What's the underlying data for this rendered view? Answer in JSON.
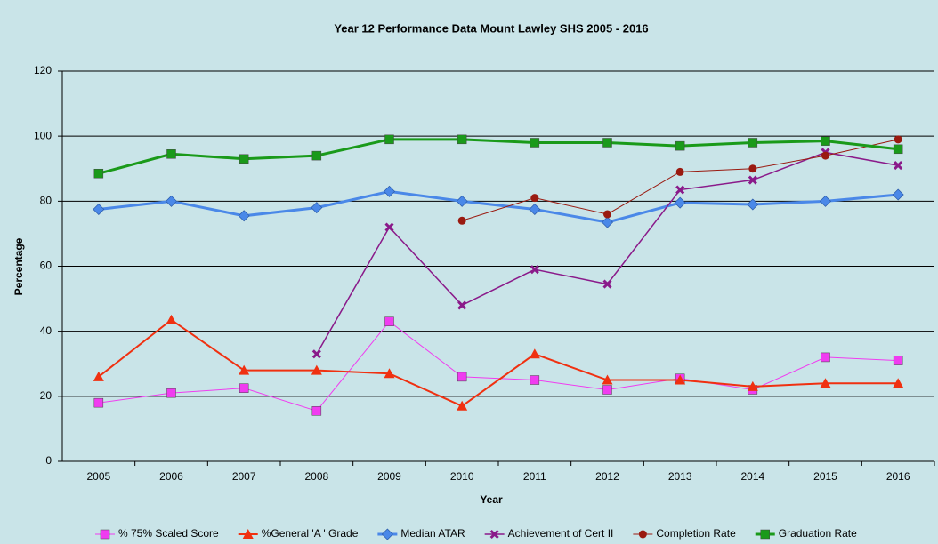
{
  "chart_data": {
    "type": "line",
    "title": "Year 12 Performance Data Mount Lawley SHS 2005 - 2016",
    "x_label": "Year",
    "y_label": "Percentage",
    "categories": [
      "2005",
      "2006",
      "2007",
      "2008",
      "2009",
      "2010",
      "2011",
      "2012",
      "2013",
      "2014",
      "2015",
      "2016"
    ],
    "ylim": [
      0,
      120
    ],
    "yticks": [
      0,
      20,
      40,
      60,
      80,
      100,
      120
    ],
    "grid": true,
    "legend": "bottom",
    "series": [
      {
        "name": "% 75% Scaled Score",
        "color": "#f03cf0",
        "marker": "square",
        "values": [
          18,
          21,
          22.5,
          15.5,
          43,
          26,
          25,
          22,
          25.5,
          22,
          32,
          31
        ]
      },
      {
        "name": "%General 'A ' Grade",
        "color": "#f03010",
        "marker": "triangle",
        "values": [
          26,
          43.5,
          28,
          28,
          27,
          17,
          33,
          25,
          25,
          23,
          24,
          24
        ]
      },
      {
        "name": "Median ATAR",
        "color": "#4a88e8",
        "marker": "diamond",
        "values": [
          77.5,
          80,
          75.5,
          78,
          83,
          80,
          77.5,
          73.5,
          79.5,
          79,
          80,
          82
        ]
      },
      {
        "name": "Achievement of Cert II",
        "color": "#8a1a8a",
        "marker": "x",
        "values": [
          null,
          null,
          null,
          33,
          72,
          48,
          59,
          54.5,
          83.5,
          86.5,
          95,
          91
        ]
      },
      {
        "name": "Completion Rate",
        "color": "#9a1a10",
        "marker": "circle",
        "values": [
          null,
          null,
          null,
          null,
          null,
          74,
          81,
          76,
          89,
          90,
          94,
          99
        ]
      },
      {
        "name": "Graduation Rate",
        "color": "#1a9a1a",
        "marker": "square",
        "values": [
          88.5,
          94.5,
          93,
          94,
          99,
          99,
          98,
          98,
          97,
          98,
          98.5,
          96
        ]
      }
    ]
  }
}
